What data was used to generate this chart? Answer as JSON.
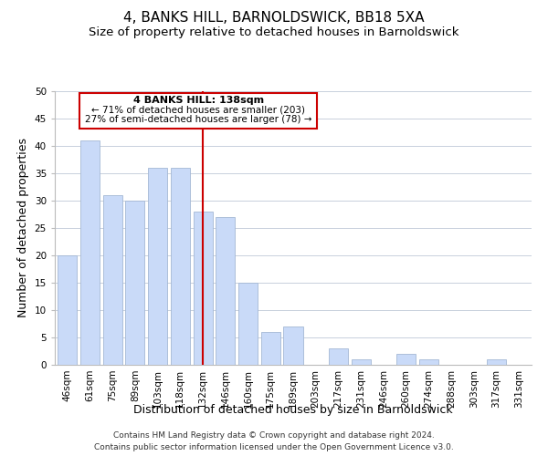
{
  "title": "4, BANKS HILL, BARNOLDSWICK, BB18 5XA",
  "subtitle": "Size of property relative to detached houses in Barnoldswick",
  "xlabel": "Distribution of detached houses by size in Barnoldswick",
  "ylabel": "Number of detached properties",
  "bar_labels": [
    "46sqm",
    "61sqm",
    "75sqm",
    "89sqm",
    "103sqm",
    "118sqm",
    "132sqm",
    "146sqm",
    "160sqm",
    "175sqm",
    "189sqm",
    "203sqm",
    "217sqm",
    "231sqm",
    "246sqm",
    "260sqm",
    "274sqm",
    "288sqm",
    "303sqm",
    "317sqm",
    "331sqm"
  ],
  "bar_values": [
    20,
    41,
    31,
    30,
    36,
    36,
    28,
    27,
    15,
    6,
    7,
    0,
    3,
    1,
    0,
    2,
    1,
    0,
    0,
    1,
    0
  ],
  "bar_color": "#c9daf8",
  "bar_edge_color": "#a4b8d4",
  "vline_x_index": 6,
  "vline_color": "#cc0000",
  "annotation_title": "4 BANKS HILL: 138sqm",
  "annotation_line1": "← 71% of detached houses are smaller (203)",
  "annotation_line2": "27% of semi-detached houses are larger (78) →",
  "annotation_box_color": "#ffffff",
  "annotation_box_edge_color": "#cc0000",
  "ylim": [
    0,
    50
  ],
  "yticks": [
    0,
    5,
    10,
    15,
    20,
    25,
    30,
    35,
    40,
    45,
    50
  ],
  "footer_line1": "Contains HM Land Registry data © Crown copyright and database right 2024.",
  "footer_line2": "Contains public sector information licensed under the Open Government Licence v3.0.",
  "background_color": "#ffffff",
  "grid_color": "#c8d0dc",
  "title_fontsize": 11,
  "subtitle_fontsize": 9.5,
  "axis_label_fontsize": 9,
  "tick_fontsize": 7.5,
  "footer_fontsize": 6.5,
  "annotation_title_fontsize": 8,
  "annotation_text_fontsize": 7.5
}
